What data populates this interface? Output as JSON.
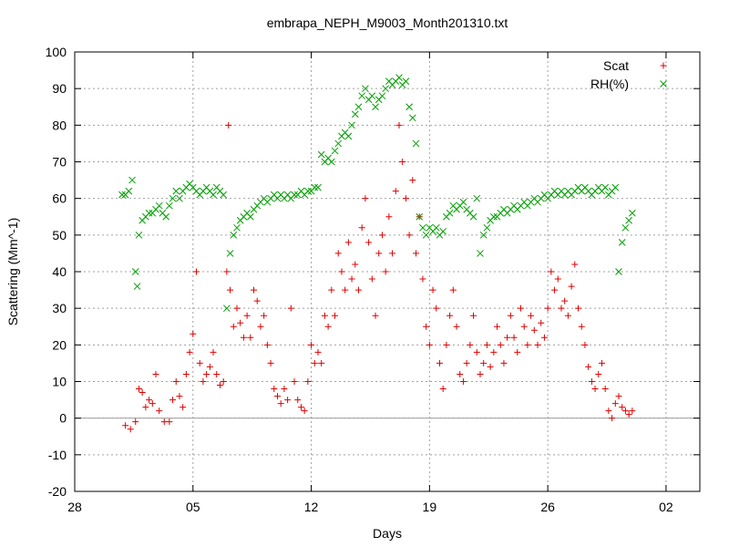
{
  "chart_data": {
    "type": "scatter",
    "title": "embrapa_NEPH_M9003_Month201310.txt",
    "xlabel": "Days",
    "ylabel": "Scattering (Mm^-1)",
    "xlim": [
      28,
      65
    ],
    "ylim": [
      -20,
      100
    ],
    "x_ticks": [
      {
        "value": 28,
        "label": "28"
      },
      {
        "value": 35,
        "label": "05"
      },
      {
        "value": 42,
        "label": "12"
      },
      {
        "value": 49,
        "label": "19"
      },
      {
        "value": 56,
        "label": "26"
      },
      {
        "value": 63,
        "label": "02"
      }
    ],
    "y_ticks": [
      -20,
      -10,
      0,
      10,
      20,
      30,
      40,
      50,
      60,
      70,
      80,
      90,
      100
    ],
    "grid": true,
    "legend_position": "top-right",
    "series": [
      {
        "name": "Scat",
        "marker": "plus",
        "color": "#e00000",
        "points": [
          [
            31.0,
            -2
          ],
          [
            31.3,
            -3
          ],
          [
            31.6,
            -1
          ],
          [
            31.8,
            8
          ],
          [
            32.0,
            7
          ],
          [
            32.2,
            3
          ],
          [
            32.4,
            5
          ],
          [
            32.6,
            4
          ],
          [
            32.8,
            12
          ],
          [
            33.0,
            2
          ],
          [
            33.3,
            -1
          ],
          [
            33.6,
            -1
          ],
          [
            33.8,
            5
          ],
          [
            34.0,
            10
          ],
          [
            34.2,
            6
          ],
          [
            34.4,
            3
          ],
          [
            34.6,
            12
          ],
          [
            34.8,
            18
          ],
          [
            35.0,
            23
          ],
          [
            35.2,
            40
          ],
          [
            35.4,
            15
          ],
          [
            35.6,
            10
          ],
          [
            35.8,
            12
          ],
          [
            36.0,
            14
          ],
          [
            36.2,
            18
          ],
          [
            36.4,
            12
          ],
          [
            36.6,
            9
          ],
          [
            36.8,
            10
          ],
          [
            37.0,
            40
          ],
          [
            37.1,
            80
          ],
          [
            37.2,
            35
          ],
          [
            37.4,
            25
          ],
          [
            37.6,
            30
          ],
          [
            37.8,
            26
          ],
          [
            38.0,
            22
          ],
          [
            38.2,
            28
          ],
          [
            38.4,
            22
          ],
          [
            38.6,
            35
          ],
          [
            38.8,
            32
          ],
          [
            39.0,
            25
          ],
          [
            39.2,
            28
          ],
          [
            39.4,
            20
          ],
          [
            39.6,
            15
          ],
          [
            39.8,
            8
          ],
          [
            40.0,
            6
          ],
          [
            40.2,
            4
          ],
          [
            40.4,
            8
          ],
          [
            40.6,
            5
          ],
          [
            40.8,
            30
          ],
          [
            41.0,
            10
          ],
          [
            41.2,
            5
          ],
          [
            41.4,
            3
          ],
          [
            41.6,
            2
          ],
          [
            41.8,
            10
          ],
          [
            42.0,
            20
          ],
          [
            42.2,
            15
          ],
          [
            42.4,
            18
          ],
          [
            42.6,
            15
          ],
          [
            42.8,
            28
          ],
          [
            43.0,
            25
          ],
          [
            43.2,
            35
          ],
          [
            43.4,
            28
          ],
          [
            43.6,
            45
          ],
          [
            43.8,
            40
          ],
          [
            44.0,
            35
          ],
          [
            44.2,
            48
          ],
          [
            44.4,
            38
          ],
          [
            44.6,
            42
          ],
          [
            44.8,
            35
          ],
          [
            45.0,
            52
          ],
          [
            45.2,
            60
          ],
          [
            45.4,
            48
          ],
          [
            45.6,
            38
          ],
          [
            45.8,
            28
          ],
          [
            46.0,
            45
          ],
          [
            46.2,
            50
          ],
          [
            46.4,
            40
          ],
          [
            46.6,
            55
          ],
          [
            46.8,
            45
          ],
          [
            47.0,
            62
          ],
          [
            47.2,
            80
          ],
          [
            47.4,
            70
          ],
          [
            47.6,
            60
          ],
          [
            47.8,
            50
          ],
          [
            48.0,
            65
          ],
          [
            48.2,
            45
          ],
          [
            48.4,
            55
          ],
          [
            48.6,
            38
          ],
          [
            48.8,
            25
          ],
          [
            49.0,
            20
          ],
          [
            49.2,
            35
          ],
          [
            49.4,
            30
          ],
          [
            49.6,
            15
          ],
          [
            49.8,
            8
          ],
          [
            50.0,
            20
          ],
          [
            50.2,
            28
          ],
          [
            50.4,
            35
          ],
          [
            50.6,
            25
          ],
          [
            50.8,
            12
          ],
          [
            51.0,
            10
          ],
          [
            51.2,
            15
          ],
          [
            51.4,
            20
          ],
          [
            51.6,
            28
          ],
          [
            51.8,
            18
          ],
          [
            52.0,
            12
          ],
          [
            52.2,
            15
          ],
          [
            52.4,
            20
          ],
          [
            52.6,
            14
          ],
          [
            52.8,
            18
          ],
          [
            53.0,
            25
          ],
          [
            53.2,
            20
          ],
          [
            53.4,
            15
          ],
          [
            53.6,
            22
          ],
          [
            53.8,
            28
          ],
          [
            54.0,
            22
          ],
          [
            54.2,
            18
          ],
          [
            54.4,
            30
          ],
          [
            54.6,
            25
          ],
          [
            54.8,
            20
          ],
          [
            55.0,
            28
          ],
          [
            55.2,
            24
          ],
          [
            55.4,
            20
          ],
          [
            55.6,
            26
          ],
          [
            55.8,
            22
          ],
          [
            56.0,
            30
          ],
          [
            56.2,
            40
          ],
          [
            56.4,
            35
          ],
          [
            56.6,
            38
          ],
          [
            56.8,
            30
          ],
          [
            57.0,
            32
          ],
          [
            57.2,
            28
          ],
          [
            57.4,
            36
          ],
          [
            57.6,
            42
          ],
          [
            57.8,
            30
          ],
          [
            58.0,
            25
          ],
          [
            58.2,
            20
          ],
          [
            58.4,
            14
          ],
          [
            58.6,
            10
          ],
          [
            58.8,
            8
          ],
          [
            59.0,
            12
          ],
          [
            59.2,
            15
          ],
          [
            59.4,
            8
          ],
          [
            59.6,
            2
          ],
          [
            59.8,
            0
          ],
          [
            60.0,
            4
          ],
          [
            60.2,
            6
          ],
          [
            60.4,
            3
          ],
          [
            60.6,
            2
          ],
          [
            60.8,
            1
          ],
          [
            61.0,
            2
          ]
        ]
      },
      {
        "name": "RH(%)",
        "marker": "cross",
        "color": "#00a000",
        "points": [
          [
            30.8,
            61
          ],
          [
            31.0,
            61
          ],
          [
            31.2,
            62
          ],
          [
            31.4,
            65
          ],
          [
            31.6,
            40
          ],
          [
            31.7,
            36
          ],
          [
            31.8,
            50
          ],
          [
            32.0,
            54
          ],
          [
            32.2,
            55
          ],
          [
            32.4,
            56
          ],
          [
            32.6,
            56
          ],
          [
            32.8,
            57
          ],
          [
            33.0,
            58
          ],
          [
            33.2,
            56
          ],
          [
            33.4,
            55
          ],
          [
            33.6,
            58
          ],
          [
            33.8,
            60
          ],
          [
            34.0,
            62
          ],
          [
            34.2,
            60
          ],
          [
            34.4,
            62
          ],
          [
            34.6,
            63
          ],
          [
            34.8,
            64
          ],
          [
            35.0,
            63
          ],
          [
            35.2,
            62
          ],
          [
            35.4,
            61
          ],
          [
            35.6,
            62
          ],
          [
            35.8,
            63
          ],
          [
            36.0,
            62
          ],
          [
            36.2,
            61
          ],
          [
            36.4,
            63
          ],
          [
            36.6,
            62
          ],
          [
            36.8,
            61
          ],
          [
            37.0,
            30
          ],
          [
            37.2,
            45
          ],
          [
            37.4,
            50
          ],
          [
            37.6,
            52
          ],
          [
            37.8,
            54
          ],
          [
            38.0,
            55
          ],
          [
            38.2,
            56
          ],
          [
            38.4,
            55
          ],
          [
            38.6,
            57
          ],
          [
            38.8,
            58
          ],
          [
            39.0,
            59
          ],
          [
            39.2,
            60
          ],
          [
            39.4,
            59
          ],
          [
            39.6,
            60
          ],
          [
            39.8,
            61
          ],
          [
            40.0,
            60
          ],
          [
            40.2,
            61
          ],
          [
            40.4,
            60
          ],
          [
            40.6,
            61
          ],
          [
            40.8,
            60
          ],
          [
            41.0,
            61
          ],
          [
            41.2,
            61
          ],
          [
            41.4,
            62
          ],
          [
            41.6,
            61
          ],
          [
            41.8,
            62
          ],
          [
            42.0,
            62
          ],
          [
            42.2,
            63
          ],
          [
            42.4,
            63
          ],
          [
            42.6,
            72
          ],
          [
            42.8,
            70
          ],
          [
            43.0,
            71
          ],
          [
            43.2,
            70
          ],
          [
            43.4,
            73
          ],
          [
            43.6,
            75
          ],
          [
            43.8,
            77
          ],
          [
            44.0,
            78
          ],
          [
            44.2,
            77
          ],
          [
            44.4,
            80
          ],
          [
            44.6,
            83
          ],
          [
            44.8,
            85
          ],
          [
            45.0,
            88
          ],
          [
            45.2,
            90
          ],
          [
            45.4,
            87
          ],
          [
            45.6,
            88
          ],
          [
            45.8,
            85
          ],
          [
            46.0,
            87
          ],
          [
            46.2,
            88
          ],
          [
            46.4,
            90
          ],
          [
            46.6,
            92
          ],
          [
            46.8,
            91
          ],
          [
            47.0,
            92
          ],
          [
            47.2,
            93
          ],
          [
            47.4,
            91
          ],
          [
            47.6,
            92
          ],
          [
            47.8,
            85
          ],
          [
            48.0,
            82
          ],
          [
            48.2,
            75
          ],
          [
            48.4,
            55
          ],
          [
            48.6,
            52
          ],
          [
            48.8,
            50
          ],
          [
            49.0,
            52
          ],
          [
            49.2,
            51
          ],
          [
            49.4,
            52
          ],
          [
            49.6,
            50
          ],
          [
            49.8,
            51
          ],
          [
            50.0,
            55
          ],
          [
            50.2,
            56
          ],
          [
            50.4,
            58
          ],
          [
            50.6,
            57
          ],
          [
            50.8,
            58
          ],
          [
            51.0,
            59
          ],
          [
            51.2,
            57
          ],
          [
            51.4,
            56
          ],
          [
            51.6,
            55
          ],
          [
            51.8,
            60
          ],
          [
            52.0,
            45
          ],
          [
            52.2,
            50
          ],
          [
            52.4,
            52
          ],
          [
            52.6,
            54
          ],
          [
            52.8,
            55
          ],
          [
            53.0,
            55
          ],
          [
            53.2,
            56
          ],
          [
            53.4,
            57
          ],
          [
            53.6,
            56
          ],
          [
            53.8,
            57
          ],
          [
            54.0,
            58
          ],
          [
            54.2,
            57
          ],
          [
            54.4,
            58
          ],
          [
            54.6,
            59
          ],
          [
            54.8,
            58
          ],
          [
            55.0,
            59
          ],
          [
            55.2,
            60
          ],
          [
            55.4,
            59
          ],
          [
            55.6,
            60
          ],
          [
            55.8,
            61
          ],
          [
            56.0,
            60
          ],
          [
            56.2,
            61
          ],
          [
            56.4,
            62
          ],
          [
            56.6,
            61
          ],
          [
            56.8,
            62
          ],
          [
            57.0,
            61
          ],
          [
            57.2,
            62
          ],
          [
            57.4,
            61
          ],
          [
            57.6,
            62
          ],
          [
            57.8,
            63
          ],
          [
            58.0,
            62
          ],
          [
            58.2,
            63
          ],
          [
            58.4,
            62
          ],
          [
            58.6,
            61
          ],
          [
            58.8,
            62
          ],
          [
            59.0,
            63
          ],
          [
            59.2,
            62
          ],
          [
            59.4,
            63
          ],
          [
            59.6,
            61
          ],
          [
            59.8,
            62
          ],
          [
            60.0,
            63
          ],
          [
            60.2,
            40
          ],
          [
            60.4,
            48
          ],
          [
            60.6,
            52
          ],
          [
            60.8,
            54
          ],
          [
            61.0,
            56
          ]
        ]
      }
    ]
  }
}
